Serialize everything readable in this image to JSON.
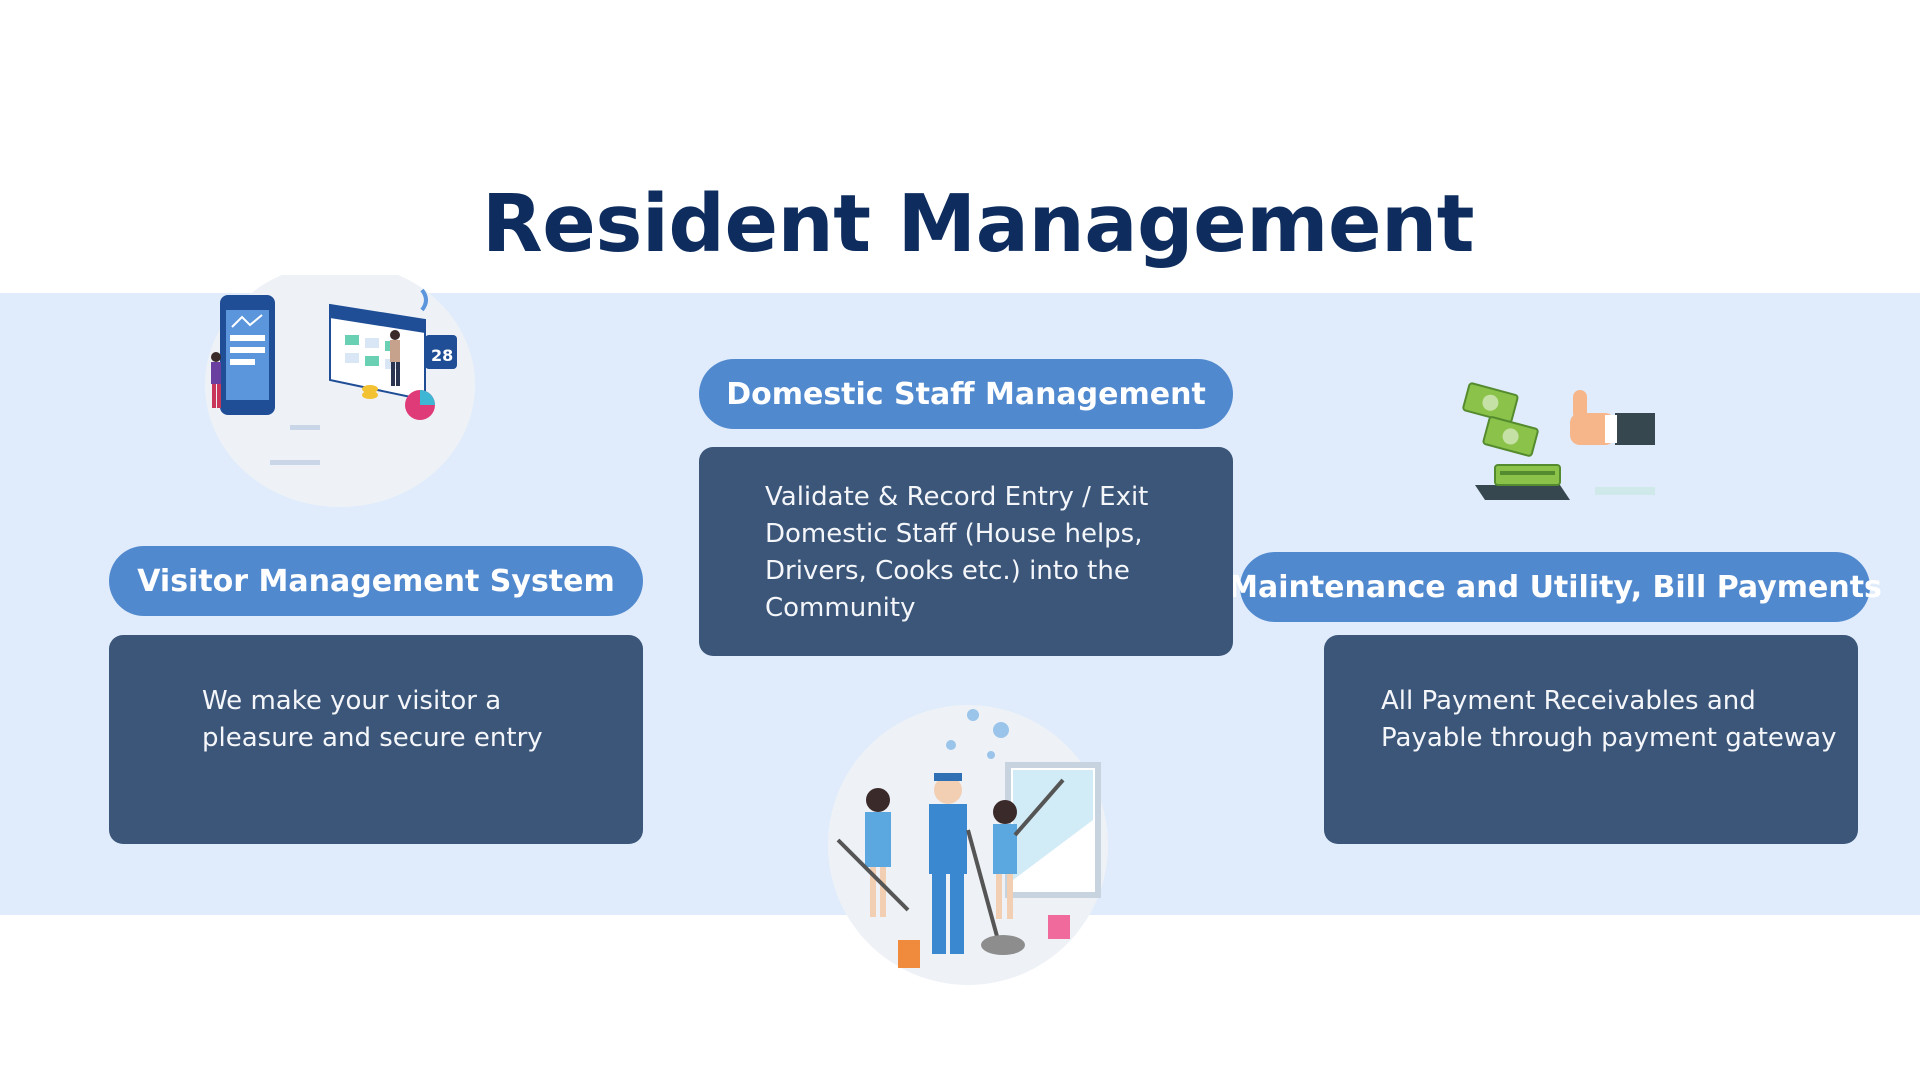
{
  "page": {
    "title": "Resident Management"
  },
  "colors": {
    "title": "#0e2d5e",
    "band": "#e0ecfb",
    "pill": "#5189cf",
    "card": "#3b5679",
    "card_text": "#f4f6fa"
  },
  "sections": {
    "visitor": {
      "heading": "Visitor Management System",
      "body_lines": [
        "We make your visitor a",
        "pleasure and secure entry"
      ],
      "illustration": "visitor-app-calendar-illustration"
    },
    "domestic": {
      "heading": "Domestic Staff Management",
      "body_lines": [
        "Validate & Record Entry / Exit",
        "Domestic Staff (House helps,",
        "Drivers, Cooks etc.) into the",
        "Community"
      ],
      "illustration": "cleaning-staff-illustration"
    },
    "payments": {
      "heading": "Maintenance and Utility, Bill Payments",
      "body_lines": [
        "All Payment Receivables and",
        "Payable through payment gateway"
      ],
      "illustration": "money-thumbs-up-illustration"
    }
  }
}
